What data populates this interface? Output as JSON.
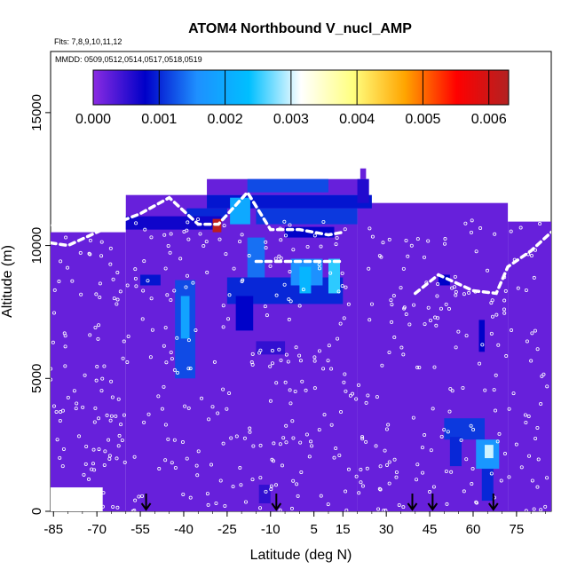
{
  "chart_data": {
    "type": "heatmap",
    "title": "ATOM4 Northbound V_nucl_AMP",
    "subtitle_flights": "Flts: 7,8,9,10,11,12",
    "subtitle_dates": "MMDD: 0509,0512,0514,0517,0518,0519",
    "xlabel": "Latitude (deg N)",
    "ylabel": "Altitude (m)",
    "xlim": [
      -86,
      87
    ],
    "ylim": [
      0,
      17300
    ],
    "x_ticks": [
      -85,
      -70,
      -55,
      -40,
      -25,
      -10,
      5,
      15,
      30,
      45,
      60,
      75
    ],
    "y_ticks": [
      0,
      5000,
      10000,
      15000
    ],
    "colorbar": {
      "range": [
        0,
        0.0063
      ],
      "ticks": [
        "0.000",
        "0.001",
        "0.002",
        "0.003",
        "0.004",
        "0.005",
        "0.006"
      ],
      "colors": [
        "#8a2be2",
        "#0000c8",
        "#1e90ff",
        "#00bfff",
        "#ffffff",
        "#ffff80",
        "#ffa500",
        "#ff0000",
        "#b22222"
      ]
    },
    "background_value": 0.0002,
    "cells": [
      {
        "lat": [
          -32,
          25
        ],
        "alt": [
          11400,
          11900
        ],
        "value": 0.0009
      },
      {
        "lat": [
          -39,
          -25
        ],
        "alt": [
          11000,
          11400
        ],
        "value": 0.001
      },
      {
        "lat": [
          -60,
          -27
        ],
        "alt": [
          10600,
          11100
        ],
        "value": 0.0007
      },
      {
        "lat": [
          -30,
          -27
        ],
        "alt": [
          10500,
          11000
        ],
        "value": 0.0062
      },
      {
        "lat": [
          -24,
          -17
        ],
        "alt": [
          10800,
          11800
        ],
        "value": 0.002
      },
      {
        "lat": [
          -15,
          20
        ],
        "alt": [
          10800,
          11400
        ],
        "value": 0.0011
      },
      {
        "lat": [
          -5,
          12
        ],
        "alt": [
          10300,
          10700
        ],
        "value": 0.0008
      },
      {
        "lat": [
          20,
          24
        ],
        "alt": [
          11600,
          12500
        ],
        "value": 0.0006
      },
      {
        "lat": [
          -18,
          10
        ],
        "alt": [
          12000,
          12500
        ],
        "value": 0.0012
      },
      {
        "lat": [
          -55,
          -48
        ],
        "alt": [
          8500,
          8900
        ],
        "value": 0.0009
      },
      {
        "lat": [
          -43,
          -36
        ],
        "alt": [
          5000,
          8700
        ],
        "value": 0.0012
      },
      {
        "lat": [
          -41,
          -38
        ],
        "alt": [
          6500,
          8100
        ],
        "value": 0.0019
      },
      {
        "lat": [
          -25,
          15
        ],
        "alt": [
          7800,
          8800
        ],
        "value": 0.001
      },
      {
        "lat": [
          -18,
          -12
        ],
        "alt": [
          8800,
          10300
        ],
        "value": 0.0014
      },
      {
        "lat": [
          -22,
          -16
        ],
        "alt": [
          6800,
          8100
        ],
        "value": 0.0008
      },
      {
        "lat": [
          -3,
          8
        ],
        "alt": [
          8500,
          9500
        ],
        "value": 0.0016
      },
      {
        "lat": [
          0,
          4
        ],
        "alt": [
          8200,
          9200
        ],
        "value": 0.0022
      },
      {
        "lat": [
          10,
          14
        ],
        "alt": [
          8200,
          9500
        ],
        "value": 0.0025
      },
      {
        "lat": [
          -15,
          -5
        ],
        "alt": [
          5900,
          6400
        ],
        "value": 0.0005
      },
      {
        "lat": [
          48,
          52
        ],
        "alt": [
          8500,
          8900
        ],
        "value": 0.0008
      },
      {
        "lat": [
          50,
          64
        ],
        "alt": [
          2700,
          3500
        ],
        "value": 0.0011
      },
      {
        "lat": [
          52,
          56
        ],
        "alt": [
          1700,
          2800
        ],
        "value": 0.001
      },
      {
        "lat": [
          61,
          69
        ],
        "alt": [
          1600,
          2700
        ],
        "value": 0.0017
      },
      {
        "lat": [
          64,
          67
        ],
        "alt": [
          2000,
          2500
        ],
        "value": 0.003
      },
      {
        "lat": [
          63,
          67
        ],
        "alt": [
          400,
          1600
        ],
        "value": 0.001
      },
      {
        "lat": [
          62,
          64
        ],
        "alt": [
          6000,
          7200
        ],
        "value": 0.0008
      },
      {
        "lat": [
          -14,
          -10
        ],
        "alt": [
          300,
          1000
        ],
        "value": 0.0005
      }
    ],
    "flight_track": [
      [
        -86,
        10100
      ],
      [
        -80,
        10000
      ],
      [
        -72,
        10400
      ],
      [
        -62,
        10900
      ],
      [
        -55,
        11200
      ],
      [
        -45,
        11800
      ],
      [
        -35,
        10800
      ],
      [
        -28,
        10800
      ],
      [
        -18,
        12000
      ],
      [
        -10,
        10600
      ],
      [
        0,
        10600
      ],
      [
        10,
        10400
      ],
      [
        15,
        10500
      ],
      [
        -15,
        9400
      ],
      [
        0,
        9400
      ],
      [
        15,
        9400
      ],
      [
        40,
        8200
      ],
      [
        48,
        8900
      ],
      [
        60,
        8300
      ],
      [
        68,
        8200
      ],
      [
        72,
        9200
      ],
      [
        80,
        9800
      ],
      [
        87,
        10500
      ]
    ],
    "profile_markers_lat": [
      -53,
      -8,
      39,
      46,
      67
    ]
  }
}
